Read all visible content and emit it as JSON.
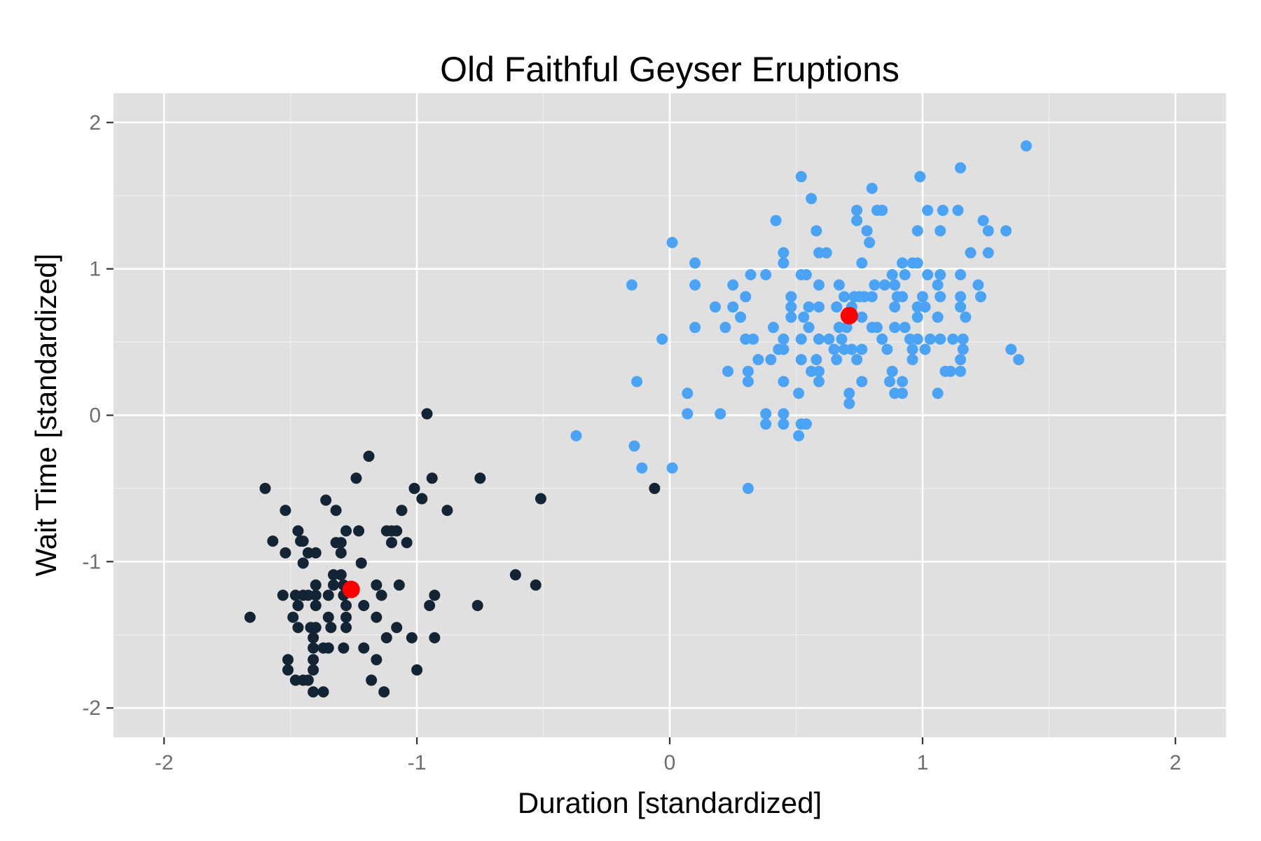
{
  "chart_data": {
    "type": "scatter",
    "title": "Old Faithful Geyser Eruptions",
    "xlabel": "Duration [standardized]",
    "ylabel": "Wait Time [standardized]",
    "xlim": [
      -2.2,
      2.2
    ],
    "ylim": [
      -2.2,
      2.2
    ],
    "x_ticks": [
      -2,
      -1,
      0,
      1,
      2
    ],
    "y_ticks": [
      -2,
      -1,
      0,
      1,
      2
    ],
    "x_tick_labels": [
      "-2",
      "-1",
      "0",
      "1",
      "2"
    ],
    "y_tick_labels": [
      "-2",
      "-1",
      "0",
      "1",
      "2"
    ],
    "grid": true,
    "legend": false,
    "colors": {
      "panel": "#e0e0e0",
      "grid_major": "#ffffff",
      "grid_minor": "#f0f0f0",
      "tick": "#333333",
      "cluster_1": "#132434",
      "cluster_2": "#4aa3f5",
      "centroid": "#ff0000"
    },
    "series": [
      {
        "color": "#132434",
        "points": [
          [
            -0.96,
            0.01
          ],
          [
            -1.19,
            -0.28
          ],
          [
            -1.24,
            -0.43
          ],
          [
            -0.94,
            -0.43
          ],
          [
            -0.75,
            -0.43
          ],
          [
            -1.6,
            -0.5
          ],
          [
            -1.01,
            -0.5
          ],
          [
            -0.51,
            -0.57
          ],
          [
            -0.98,
            -0.57
          ],
          [
            -1.36,
            -0.58
          ],
          [
            -1.52,
            -0.65
          ],
          [
            -1.32,
            -0.65
          ],
          [
            -1.06,
            -0.65
          ],
          [
            -0.88,
            -0.65
          ],
          [
            -1.47,
            -0.79
          ],
          [
            -1.23,
            -0.79
          ],
          [
            -1.28,
            -0.79
          ],
          [
            -1.12,
            -0.79
          ],
          [
            -1.1,
            -0.79
          ],
          [
            -1.08,
            -0.79
          ],
          [
            -1.57,
            -0.86
          ],
          [
            -1.46,
            -0.86
          ],
          [
            -1.45,
            -0.86
          ],
          [
            -1.32,
            -0.87
          ],
          [
            -1.3,
            -0.87
          ],
          [
            -1.1,
            -0.87
          ],
          [
            -1.04,
            -0.87
          ],
          [
            -1.52,
            -0.94
          ],
          [
            -1.43,
            -0.94
          ],
          [
            -1.4,
            -0.94
          ],
          [
            -1.3,
            -0.94
          ],
          [
            -1.45,
            -1.01
          ],
          [
            -1.22,
            -1.01
          ],
          [
            -1.33,
            -1.09
          ],
          [
            -1.3,
            -1.09
          ],
          [
            -1.33,
            -1.16
          ],
          [
            -1.4,
            -1.16
          ],
          [
            -1.29,
            -1.16
          ],
          [
            -1.16,
            -1.16
          ],
          [
            -1.07,
            -1.16
          ],
          [
            -0.61,
            -1.09
          ],
          [
            -0.53,
            -1.16
          ],
          [
            -1.53,
            -1.23
          ],
          [
            -1.48,
            -1.23
          ],
          [
            -1.45,
            -1.23
          ],
          [
            -1.43,
            -1.23
          ],
          [
            -1.4,
            -1.23
          ],
          [
            -1.35,
            -1.23
          ],
          [
            -1.29,
            -1.23
          ],
          [
            -1.14,
            -1.23
          ],
          [
            -0.93,
            -1.23
          ],
          [
            -1.47,
            -1.3
          ],
          [
            -1.4,
            -1.3
          ],
          [
            -1.28,
            -1.3
          ],
          [
            -1.21,
            -1.3
          ],
          [
            -0.95,
            -1.3
          ],
          [
            -0.76,
            -1.3
          ],
          [
            -1.66,
            -1.38
          ],
          [
            -1.49,
            -1.38
          ],
          [
            -1.35,
            -1.38
          ],
          [
            -1.28,
            -1.38
          ],
          [
            -1.16,
            -1.38
          ],
          [
            -1.47,
            -1.45
          ],
          [
            -1.4,
            -1.45
          ],
          [
            -1.42,
            -1.45
          ],
          [
            -1.34,
            -1.45
          ],
          [
            -1.28,
            -1.45
          ],
          [
            -1.08,
            -1.45
          ],
          [
            -1.41,
            -1.52
          ],
          [
            -1.12,
            -1.52
          ],
          [
            -1.02,
            -1.52
          ],
          [
            -0.93,
            -1.52
          ],
          [
            -1.41,
            -1.59
          ],
          [
            -1.37,
            -1.59
          ],
          [
            -1.35,
            -1.59
          ],
          [
            -1.29,
            -1.59
          ],
          [
            -1.21,
            -1.59
          ],
          [
            -1.51,
            -1.67
          ],
          [
            -1.41,
            -1.67
          ],
          [
            -1.16,
            -1.67
          ],
          [
            -1.51,
            -1.74
          ],
          [
            -1.41,
            -1.74
          ],
          [
            -1.0,
            -1.74
          ],
          [
            -1.48,
            -1.81
          ],
          [
            -1.45,
            -1.81
          ],
          [
            -1.43,
            -1.81
          ],
          [
            -1.18,
            -1.81
          ],
          [
            -1.41,
            -1.89
          ],
          [
            -1.37,
            -1.89
          ],
          [
            -1.13,
            -1.89
          ],
          [
            -0.06,
            -0.5
          ]
        ]
      },
      {
        "color": "#4aa3f5",
        "points": [
          [
            1.41,
            1.84
          ],
          [
            1.15,
            1.69
          ],
          [
            0.52,
            1.63
          ],
          [
            0.99,
            1.63
          ],
          [
            0.8,
            1.55
          ],
          [
            0.56,
            1.48
          ],
          [
            0.74,
            1.4
          ],
          [
            0.82,
            1.4
          ],
          [
            0.84,
            1.4
          ],
          [
            1.02,
            1.4
          ],
          [
            1.08,
            1.4
          ],
          [
            1.14,
            1.4
          ],
          [
            0.42,
            1.33
          ],
          [
            0.74,
            1.33
          ],
          [
            1.24,
            1.33
          ],
          [
            0.58,
            1.26
          ],
          [
            0.78,
            1.26
          ],
          [
            0.98,
            1.26
          ],
          [
            1.07,
            1.26
          ],
          [
            1.26,
            1.26
          ],
          [
            1.33,
            1.26
          ],
          [
            0.01,
            1.18
          ],
          [
            0.79,
            1.18
          ],
          [
            0.59,
            1.11
          ],
          [
            0.62,
            1.11
          ],
          [
            0.45,
            1.11
          ],
          [
            1.19,
            1.11
          ],
          [
            1.26,
            1.11
          ],
          [
            0.1,
            1.04
          ],
          [
            0.45,
            1.04
          ],
          [
            0.76,
            1.04
          ],
          [
            0.92,
            1.04
          ],
          [
            0.98,
            1.04
          ],
          [
            0.96,
            1.04
          ],
          [
            -0.15,
            0.89
          ],
          [
            0.1,
            0.89
          ],
          [
            0.25,
            0.89
          ],
          [
            0.32,
            0.96
          ],
          [
            0.38,
            0.96
          ],
          [
            0.52,
            0.96
          ],
          [
            0.54,
            0.96
          ],
          [
            0.59,
            0.89
          ],
          [
            0.67,
            0.89
          ],
          [
            0.81,
            0.89
          ],
          [
            0.85,
            0.89
          ],
          [
            0.88,
            0.96
          ],
          [
            0.93,
            0.96
          ],
          [
            0.89,
            0.89
          ],
          [
            1.02,
            0.96
          ],
          [
            1.07,
            0.96
          ],
          [
            1.15,
            0.96
          ],
          [
            1.06,
            0.89
          ],
          [
            1.22,
            0.89
          ],
          [
            0.18,
            0.74
          ],
          [
            0.25,
            0.74
          ],
          [
            0.3,
            0.81
          ],
          [
            0.48,
            0.81
          ],
          [
            0.48,
            0.74
          ],
          [
            0.55,
            0.74
          ],
          [
            0.59,
            0.74
          ],
          [
            0.66,
            0.74
          ],
          [
            0.69,
            0.81
          ],
          [
            0.73,
            0.81
          ],
          [
            0.75,
            0.81
          ],
          [
            0.77,
            0.81
          ],
          [
            0.8,
            0.81
          ],
          [
            0.9,
            0.81
          ],
          [
            0.92,
            0.81
          ],
          [
            1.0,
            0.81
          ],
          [
            1.07,
            0.81
          ],
          [
            1.15,
            0.81
          ],
          [
            1.23,
            0.81
          ],
          [
            0.28,
            0.67
          ],
          [
            0.48,
            0.67
          ],
          [
            0.53,
            0.67
          ],
          [
            0.72,
            0.74
          ],
          [
            0.76,
            0.67
          ],
          [
            0.89,
            0.74
          ],
          [
            0.98,
            0.74
          ],
          [
            1.01,
            0.74
          ],
          [
            1.15,
            0.74
          ],
          [
            1.17,
            0.67
          ],
          [
            0.1,
            0.6
          ],
          [
            0.22,
            0.6
          ],
          [
            0.41,
            0.6
          ],
          [
            0.55,
            0.6
          ],
          [
            0.67,
            0.6
          ],
          [
            0.7,
            0.6
          ],
          [
            0.72,
            0.67
          ],
          [
            0.8,
            0.6
          ],
          [
            0.82,
            0.6
          ],
          [
            0.89,
            0.6
          ],
          [
            0.93,
            0.6
          ],
          [
            0.98,
            0.67
          ],
          [
            1.06,
            0.67
          ],
          [
            -0.03,
            0.52
          ],
          [
            0.3,
            0.52
          ],
          [
            0.33,
            0.52
          ],
          [
            0.45,
            0.52
          ],
          [
            0.52,
            0.52
          ],
          [
            0.59,
            0.52
          ],
          [
            0.63,
            0.52
          ],
          [
            0.68,
            0.52
          ],
          [
            0.84,
            0.52
          ],
          [
            0.95,
            0.52
          ],
          [
            0.98,
            0.52
          ],
          [
            1.03,
            0.52
          ],
          [
            1.07,
            0.52
          ],
          [
            1.12,
            0.52
          ],
          [
            1.16,
            0.52
          ],
          [
            0.35,
            0.38
          ],
          [
            0.43,
            0.45
          ],
          [
            0.45,
            0.45
          ],
          [
            0.52,
            0.38
          ],
          [
            0.58,
            0.38
          ],
          [
            0.65,
            0.45
          ],
          [
            0.69,
            0.45
          ],
          [
            0.72,
            0.45
          ],
          [
            0.76,
            0.45
          ],
          [
            0.86,
            0.45
          ],
          [
            0.96,
            0.45
          ],
          [
            1.01,
            0.45
          ],
          [
            1.16,
            0.45
          ],
          [
            1.35,
            0.45
          ],
          [
            0.4,
            0.38
          ],
          [
            0.66,
            0.38
          ],
          [
            0.74,
            0.38
          ],
          [
            0.96,
            0.38
          ],
          [
            1.15,
            0.38
          ],
          [
            1.38,
            0.38
          ],
          [
            0.23,
            0.3
          ],
          [
            0.31,
            0.3
          ],
          [
            0.56,
            0.3
          ],
          [
            0.59,
            0.3
          ],
          [
            0.88,
            0.3
          ],
          [
            1.09,
            0.3
          ],
          [
            1.11,
            0.3
          ],
          [
            1.15,
            0.3
          ],
          [
            -0.13,
            0.23
          ],
          [
            0.31,
            0.23
          ],
          [
            0.45,
            0.23
          ],
          [
            0.59,
            0.23
          ],
          [
            0.76,
            0.23
          ],
          [
            0.87,
            0.23
          ],
          [
            0.92,
            0.23
          ],
          [
            0.07,
            0.15
          ],
          [
            0.51,
            0.15
          ],
          [
            0.71,
            0.15
          ],
          [
            0.89,
            0.15
          ],
          [
            0.92,
            0.15
          ],
          [
            1.06,
            0.15
          ],
          [
            0.71,
            0.08
          ],
          [
            0.07,
            0.01
          ],
          [
            0.2,
            0.01
          ],
          [
            0.38,
            0.01
          ],
          [
            0.45,
            0.01
          ],
          [
            0.38,
            -0.06
          ],
          [
            0.45,
            -0.06
          ],
          [
            0.52,
            -0.06
          ],
          [
            0.54,
            -0.06
          ],
          [
            0.51,
            -0.14
          ],
          [
            -0.37,
            -0.14
          ],
          [
            -0.14,
            -0.21
          ],
          [
            -0.11,
            -0.36
          ],
          [
            0.01,
            -0.36
          ],
          [
            0.31,
            -0.5
          ]
        ]
      }
    ],
    "centroids": [
      [
        -1.26,
        -1.19
      ],
      [
        0.71,
        0.68
      ]
    ]
  }
}
